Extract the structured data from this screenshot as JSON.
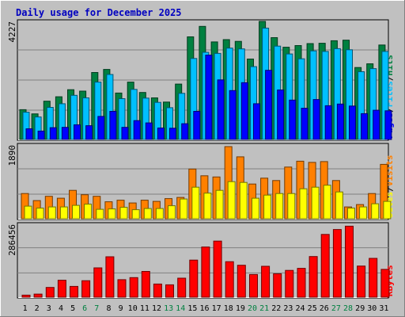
{
  "title": "Daily usage for December 2025",
  "colors": {
    "background": "#c0c0c0",
    "title_text": "#0000c0",
    "hits": "#008040",
    "files": "#00c0ff",
    "pages": "#0000ff",
    "visits": "#ff8000",
    "sites": "#ffff00",
    "kbytes": "#ff0000",
    "weekday_label": "#000000",
    "weekend_label": "#008040"
  },
  "chart_data": [
    {
      "type": "bar",
      "name": "hits-files-pages",
      "max_label": "4227",
      "ymax": 4227,
      "categories": [
        "1",
        "2",
        "3",
        "4",
        "5",
        "6",
        "7",
        "8",
        "9",
        "10",
        "11",
        "12",
        "13",
        "14",
        "15",
        "16",
        "17",
        "18",
        "19",
        "20",
        "21",
        "22",
        "23",
        "24",
        "25",
        "26",
        "27",
        "28",
        "29",
        "30",
        "31"
      ],
      "weekend_days": [
        "6",
        "7",
        "13",
        "14",
        "20",
        "21",
        "27",
        "28"
      ],
      "legend": [
        "Pages",
        "/",
        "Files",
        "/",
        "Hits"
      ],
      "series": [
        {
          "name": "Hits",
          "values": [
            1060,
            910,
            1360,
            1520,
            1770,
            1720,
            2380,
            2490,
            1650,
            2040,
            1670,
            1480,
            1330,
            1970,
            3650,
            4020,
            3470,
            3550,
            3490,
            2860,
            4200,
            3620,
            3280,
            3340,
            3410,
            3420,
            3510,
            3530,
            2560,
            2690,
            3360
          ]
        },
        {
          "name": "Files",
          "values": [
            970,
            800,
            1140,
            1270,
            1570,
            1480,
            2040,
            2310,
            1450,
            1780,
            1470,
            1320,
            1130,
            1640,
            2880,
            3100,
            3060,
            3250,
            3220,
            2590,
            3960,
            3320,
            3040,
            2870,
            3150,
            3130,
            3230,
            3190,
            2410,
            2520,
            3130
          ]
        },
        {
          "name": "Pages",
          "values": [
            380,
            300,
            420,
            430,
            520,
            490,
            820,
            1000,
            430,
            670,
            590,
            410,
            400,
            560,
            1000,
            3000,
            2120,
            1740,
            2020,
            1270,
            2460,
            1760,
            1400,
            1110,
            1420,
            1200,
            1260,
            1190,
            920,
            1040,
            1020
          ]
        }
      ]
    },
    {
      "type": "bar",
      "name": "visits-sites",
      "max_label": "1890",
      "ymax": 1890,
      "categories": [
        "1",
        "2",
        "3",
        "4",
        "5",
        "6",
        "7",
        "8",
        "9",
        "10",
        "11",
        "12",
        "13",
        "14",
        "15",
        "16",
        "17",
        "18",
        "19",
        "20",
        "21",
        "22",
        "23",
        "24",
        "25",
        "26",
        "27",
        "28",
        "29",
        "30",
        "31"
      ],
      "legend": [
        "Sites",
        "/",
        "Visits"
      ],
      "series": [
        {
          "name": "Visits",
          "values": [
            640,
            460,
            570,
            520,
            720,
            610,
            570,
            430,
            470,
            400,
            470,
            440,
            510,
            540,
            1260,
            1090,
            1060,
            1830,
            1570,
            880,
            1030,
            970,
            1310,
            1460,
            1430,
            1450,
            970,
            300,
            360,
            640,
            1380
          ]
        },
        {
          "name": "Sites",
          "values": [
            320,
            270,
            300,
            300,
            340,
            370,
            240,
            250,
            290,
            230,
            260,
            260,
            330,
            500,
            800,
            650,
            720,
            940,
            920,
            520,
            600,
            640,
            640,
            760,
            800,
            850,
            680,
            270,
            300,
            380,
            440
          ]
        }
      ]
    },
    {
      "type": "bar",
      "name": "kbytes",
      "max_label": "286456",
      "ymax": 286456,
      "categories": [
        "1",
        "2",
        "3",
        "4",
        "5",
        "6",
        "7",
        "8",
        "9",
        "10",
        "11",
        "12",
        "13",
        "14",
        "15",
        "16",
        "17",
        "18",
        "19",
        "20",
        "21",
        "22",
        "23",
        "24",
        "25",
        "26",
        "27",
        "28",
        "29",
        "30",
        "31"
      ],
      "legend": [
        "KBytes"
      ],
      "series": [
        {
          "name": "KBytes",
          "values": [
            8000,
            12000,
            38000,
            66000,
            42000,
            64000,
            114000,
            157000,
            68000,
            76000,
            100000,
            51000,
            48000,
            74000,
            144000,
            195000,
            218000,
            138000,
            124000,
            88000,
            120000,
            91000,
            104000,
            112000,
            158000,
            244000,
            263000,
            276000,
            121000,
            151000,
            108000
          ]
        }
      ]
    }
  ]
}
